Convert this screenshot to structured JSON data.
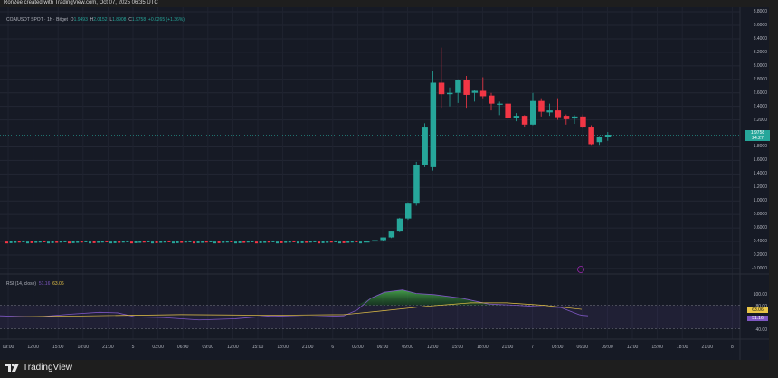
{
  "header": {
    "credit": "Ron2ee created with TradingView.com, Oct 07, 2025 06:35 UTC"
  },
  "symbol_legend": {
    "symbol": "COAIUSDT SPOT · 1h · Bitget",
    "open_label": "O",
    "open": "1.9493",
    "high_label": "H",
    "high": "2.0152",
    "low_label": "L",
    "low": "1.8908",
    "close_label": "C",
    "close": "1.9758",
    "change": "+0.0265 (+1.36%)"
  },
  "rsi_legend": {
    "name": "RSI (14, close)",
    "rsi_value": "51.16",
    "ma_value": "63.06"
  },
  "price_axis": {
    "labels": [
      "3.8000",
      "3.6000",
      "3.4000",
      "3.2000",
      "3.0000",
      "2.8000",
      "2.6000",
      "2.4000",
      "2.2000",
      "1.8000",
      "1.6000",
      "1.4000",
      "1.2000",
      "1.0000",
      "0.8000",
      "0.6000",
      "0.4000",
      "0.2000",
      "-0.0000"
    ],
    "current_price": "1.9758",
    "countdown": "24:27"
  },
  "rsi_axis": {
    "labels": [
      "100.00",
      "80.00",
      "40.00"
    ],
    "ma_tag": "63.06",
    "rsi_tag": "51.16"
  },
  "time_axis": {
    "labels": [
      "09:00",
      "12:00",
      "15:00",
      "18:00",
      "21:00",
      "5",
      "03:00",
      "06:00",
      "09:00",
      "12:00",
      "15:00",
      "18:00",
      "21:00",
      "6",
      "03:00",
      "06:00",
      "09:00",
      "12:00",
      "15:00",
      "18:00",
      "21:00",
      "7",
      "03:00",
      "06:00",
      "09:00",
      "12:00",
      "15:00",
      "18:00",
      "21:00",
      "8"
    ]
  },
  "footer": {
    "brand": "TradingView"
  },
  "colors": {
    "up": "#26a69a",
    "down": "#f23645",
    "rsi_line": "#7e57c2",
    "rsi_ma": "#e8c547",
    "background": "#161a25"
  },
  "chart_data": {
    "type": "candlestick",
    "title": "COAIUSDT SPOT · 1h · Bitget",
    "xlabel": "",
    "ylabel": "Price (USDT)",
    "ylim": [
      -0.05,
      3.85
    ],
    "grid": true,
    "x_range": [
      "Oct 04 09:00",
      "Oct 07 06:00"
    ],
    "ohlc_summary": {
      "open": 1.9493,
      "high": 2.0152,
      "low": 1.8908,
      "close": 1.9758,
      "change": 0.0265,
      "change_pct": 1.36
    },
    "approx_series_note": "flat ~0.39 from Oct 4 09:00 to Oct 6 02:00, then rally",
    "candles": [
      {
        "t": "Oct 6 03:00",
        "o": 0.4,
        "h": 0.41,
        "l": 0.39,
        "c": 0.4
      },
      {
        "t": "Oct 6 04:00",
        "o": 0.4,
        "h": 0.42,
        "l": 0.4,
        "c": 0.42
      },
      {
        "t": "Oct 6 05:00",
        "o": 0.42,
        "h": 0.46,
        "l": 0.41,
        "c": 0.46
      },
      {
        "t": "Oct 6 06:00",
        "o": 0.46,
        "h": 0.56,
        "l": 0.45,
        "c": 0.56
      },
      {
        "t": "Oct 6 07:00",
        "o": 0.56,
        "h": 0.75,
        "l": 0.55,
        "c": 0.74
      },
      {
        "t": "Oct 6 08:00",
        "o": 0.74,
        "h": 0.98,
        "l": 0.72,
        "c": 0.96
      },
      {
        "t": "Oct 6 09:00",
        "o": 0.96,
        "h": 1.58,
        "l": 0.93,
        "c": 1.53
      },
      {
        "t": "Oct 6 10:00",
        "o": 1.53,
        "h": 2.15,
        "l": 1.5,
        "c": 2.1
      },
      {
        "t": "Oct 6 11:00",
        "o": 1.5,
        "h": 2.92,
        "l": 1.45,
        "c": 2.75
      },
      {
        "t": "Oct 6 12:00",
        "o": 2.75,
        "h": 3.27,
        "l": 2.38,
        "c": 2.58
      },
      {
        "t": "Oct 6 13:00",
        "o": 2.58,
        "h": 2.68,
        "l": 2.4,
        "c": 2.6
      },
      {
        "t": "Oct 6 14:00",
        "o": 2.6,
        "h": 2.8,
        "l": 2.45,
        "c": 2.79
      },
      {
        "t": "Oct 6 15:00",
        "o": 2.79,
        "h": 2.85,
        "l": 2.38,
        "c": 2.57
      },
      {
        "t": "Oct 6 16:00",
        "o": 2.6,
        "h": 2.65,
        "l": 2.47,
        "c": 2.63
      },
      {
        "t": "Oct 6 17:00",
        "o": 2.63,
        "h": 2.83,
        "l": 2.52,
        "c": 2.55
      },
      {
        "t": "Oct 6 18:00",
        "o": 2.56,
        "h": 2.6,
        "l": 2.34,
        "c": 2.44
      },
      {
        "t": "Oct 6 19:00",
        "o": 2.44,
        "h": 2.47,
        "l": 2.27,
        "c": 2.44
      },
      {
        "t": "Oct 6 20:00",
        "o": 2.44,
        "h": 2.48,
        "l": 2.18,
        "c": 2.23
      },
      {
        "t": "Oct 6 21:00",
        "o": 2.23,
        "h": 2.3,
        "l": 2.18,
        "c": 2.26
      },
      {
        "t": "Oct 6 22:00",
        "o": 2.26,
        "h": 2.27,
        "l": 2.1,
        "c": 2.13
      },
      {
        "t": "Oct 6 23:00",
        "o": 2.13,
        "h": 2.6,
        "l": 2.12,
        "c": 2.48
      },
      {
        "t": "Oct 7 00:00",
        "o": 2.48,
        "h": 2.52,
        "l": 2.25,
        "c": 2.32
      },
      {
        "t": "Oct 7 01:00",
        "o": 2.31,
        "h": 2.44,
        "l": 2.26,
        "c": 2.34
      },
      {
        "t": "Oct 7 02:00",
        "o": 2.34,
        "h": 2.52,
        "l": 2.2,
        "c": 2.24
      },
      {
        "t": "Oct 7 03:00",
        "o": 2.26,
        "h": 2.28,
        "l": 2.13,
        "c": 2.21
      },
      {
        "t": "Oct 7 04:00",
        "o": 2.22,
        "h": 2.27,
        "l": 2.14,
        "c": 2.25
      },
      {
        "t": "Oct 7 05:00",
        "o": 2.25,
        "h": 2.28,
        "l": 2.08,
        "c": 2.1
      },
      {
        "t": "Oct 7 06:00",
        "o": 2.1,
        "h": 2.12,
        "l": 1.83,
        "c": 1.84
      },
      {
        "t": "Oct 7 07:00",
        "o": 1.87,
        "h": 1.96,
        "l": 1.83,
        "c": 1.95
      },
      {
        "t": "Oct 7 08:00",
        "o": 1.95,
        "h": 2.02,
        "l": 1.89,
        "c": 1.98
      }
    ],
    "rsi": {
      "name": "RSI (14, close)",
      "current": 51.16,
      "ma": 63.06,
      "bands": [
        70,
        50,
        30
      ],
      "ylim": [
        30,
        105
      ],
      "peak_approx": 97
    }
  }
}
